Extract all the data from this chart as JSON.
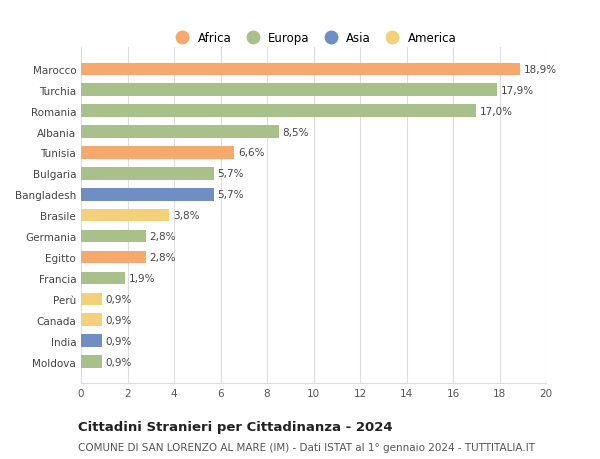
{
  "countries": [
    "Marocco",
    "Turchia",
    "Romania",
    "Albania",
    "Tunisia",
    "Bulgaria",
    "Bangladesh",
    "Brasile",
    "Germania",
    "Egitto",
    "Francia",
    "Perù",
    "Canada",
    "India",
    "Moldova"
  ],
  "values": [
    18.9,
    17.9,
    17.0,
    8.5,
    6.6,
    5.7,
    5.7,
    3.8,
    2.8,
    2.8,
    1.9,
    0.9,
    0.9,
    0.9,
    0.9
  ],
  "labels": [
    "18,9%",
    "17,9%",
    "17,0%",
    "8,5%",
    "6,6%",
    "5,7%",
    "5,7%",
    "3,8%",
    "2,8%",
    "2,8%",
    "1,9%",
    "0,9%",
    "0,9%",
    "0,9%",
    "0,9%"
  ],
  "colors": [
    "#f5a96c",
    "#a8c08a",
    "#a8c08a",
    "#a8c08a",
    "#f5a96c",
    "#a8c08a",
    "#6e8ec4",
    "#f5d07a",
    "#a8c08a",
    "#f5a96c",
    "#a8c08a",
    "#f5d07a",
    "#f5d07a",
    "#6e8ec4",
    "#a8c08a"
  ],
  "legend": [
    {
      "label": "Africa",
      "color": "#f5a96c"
    },
    {
      "label": "Europa",
      "color": "#a8c08a"
    },
    {
      "label": "Asia",
      "color": "#6e8ec4"
    },
    {
      "label": "America",
      "color": "#f5d07a"
    }
  ],
  "xlim": [
    0,
    20
  ],
  "xticks": [
    0,
    2,
    4,
    6,
    8,
    10,
    12,
    14,
    16,
    18,
    20
  ],
  "title": "Cittadini Stranieri per Cittadinanza - 2024",
  "subtitle": "COMUNE DI SAN LORENZO AL MARE (IM) - Dati ISTAT al 1° gennaio 2024 - TUTTITALIA.IT",
  "bg_color": "#ffffff",
  "grid_color": "#dddddd",
  "bar_height": 0.6,
  "label_fontsize": 7.5,
  "tick_fontsize": 7.5,
  "ytick_fontsize": 7.5,
  "legend_fontsize": 8.5,
  "title_fontsize": 9.5,
  "subtitle_fontsize": 7.5
}
